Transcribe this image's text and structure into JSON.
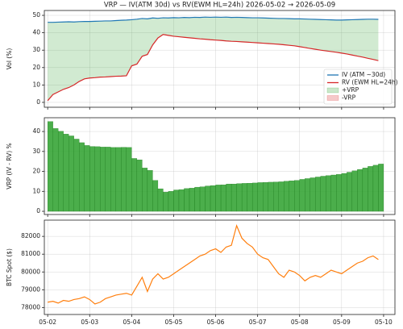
{
  "chart_data": [
    {
      "type": "line",
      "title": "VRP — IV(ATM 30d) vs RV(EWM HL=24h)  2026-05-02 → 2026-05-09",
      "ylabel": "Vol (%)",
      "x": [
        2.0,
        2.125,
        2.25,
        2.375,
        2.5,
        2.625,
        2.75,
        2.875,
        3.0,
        3.125,
        3.25,
        3.375,
        3.5,
        3.625,
        3.75,
        3.875,
        4.0,
        4.125,
        4.25,
        4.375,
        4.5,
        4.625,
        4.75,
        4.875,
        5.0,
        5.125,
        5.25,
        5.375,
        5.5,
        5.625,
        5.75,
        5.875,
        6.0,
        6.125,
        6.25,
        6.375,
        6.5,
        6.625,
        6.75,
        6.875,
        7.0,
        7.125,
        7.25,
        7.375,
        7.5,
        7.625,
        7.75,
        7.875,
        8.0,
        8.125,
        8.25,
        8.375,
        8.5,
        8.625,
        8.75,
        8.875,
        9.0,
        9.125,
        9.25,
        9.375,
        9.5,
        9.625,
        9.75,
        9.875
      ],
      "series": [
        {
          "name": "IV (ATM ~30d)",
          "color": "#1f77b4",
          "values": [
            46.0,
            46.0,
            46.1,
            46.2,
            46.3,
            46.2,
            46.4,
            46.5,
            46.5,
            46.6,
            46.7,
            46.8,
            46.8,
            47.0,
            47.2,
            47.3,
            47.5,
            47.8,
            48.2,
            48.0,
            48.5,
            48.3,
            48.6,
            48.5,
            48.7,
            48.6,
            48.8,
            48.7,
            48.9,
            48.8,
            49.0,
            48.9,
            49.0,
            48.9,
            49.0,
            48.8,
            48.9,
            48.8,
            48.7,
            48.6,
            48.6,
            48.5,
            48.4,
            48.3,
            48.2,
            48.2,
            48.1,
            48.0,
            48.0,
            47.9,
            47.8,
            47.7,
            47.6,
            47.5,
            47.4,
            47.3,
            47.3,
            47.4,
            47.5,
            47.6,
            47.7,
            47.8,
            47.8,
            47.7
          ]
        },
        {
          "name": "RV (EWM HL=24h)",
          "color": "#d62728",
          "values": [
            1.0,
            4.5,
            6.0,
            7.5,
            8.5,
            10.0,
            12.0,
            13.5,
            14.0,
            14.2,
            14.5,
            14.6,
            14.8,
            15.0,
            15.1,
            15.3,
            21.0,
            22.0,
            26.5,
            27.5,
            33.0,
            37.0,
            39.0,
            38.5,
            38.0,
            37.7,
            37.4,
            37.1,
            36.8,
            36.5,
            36.3,
            36.0,
            35.8,
            35.6,
            35.3,
            35.1,
            35.0,
            34.8,
            34.6,
            34.4,
            34.2,
            34.0,
            33.8,
            33.6,
            33.4,
            33.1,
            32.8,
            32.5,
            32.0,
            31.5,
            31.0,
            30.5,
            30.0,
            29.6,
            29.2,
            28.8,
            28.3,
            27.8,
            27.2,
            26.6,
            26.0,
            25.3,
            24.7,
            24.0
          ]
        }
      ],
      "fills": [
        {
          "name": "+VRP",
          "color": "#2ca02c"
        },
        {
          "name": "-VRP",
          "color": "#d62728"
        }
      ],
      "xlim": [
        1.92,
        10.27
      ],
      "ylim": [
        -2.8,
        52.8
      ],
      "yticks": [
        0,
        10,
        20,
        30,
        40,
        50
      ],
      "grid": true,
      "legend": "lower right"
    },
    {
      "type": "bar",
      "ylabel": "VRP (IV - RV)  %",
      "color": "#2ca02c",
      "x": [
        2.0,
        2.125,
        2.25,
        2.375,
        2.5,
        2.625,
        2.75,
        2.875,
        3.0,
        3.125,
        3.25,
        3.375,
        3.5,
        3.625,
        3.75,
        3.875,
        4.0,
        4.125,
        4.25,
        4.375,
        4.5,
        4.625,
        4.75,
        4.875,
        5.0,
        5.125,
        5.25,
        5.375,
        5.5,
        5.625,
        5.75,
        5.875,
        6.0,
        6.125,
        6.25,
        6.375,
        6.5,
        6.625,
        6.75,
        6.875,
        7.0,
        7.125,
        7.25,
        7.375,
        7.5,
        7.625,
        7.75,
        7.875,
        8.0,
        8.125,
        8.25,
        8.375,
        8.5,
        8.625,
        8.75,
        8.875,
        9.0,
        9.125,
        9.25,
        9.375,
        9.5,
        9.625,
        9.75,
        9.875
      ],
      "values": [
        45.0,
        41.5,
        40.1,
        38.7,
        37.8,
        36.2,
        34.4,
        33.0,
        32.5,
        32.4,
        32.2,
        32.2,
        32.0,
        32.0,
        32.1,
        32.0,
        26.5,
        25.8,
        21.7,
        20.5,
        15.5,
        11.3,
        9.6,
        10.0,
        10.7,
        10.9,
        11.4,
        11.6,
        12.1,
        12.3,
        12.7,
        12.9,
        13.2,
        13.3,
        13.7,
        13.7,
        13.9,
        14.0,
        14.1,
        14.2,
        14.4,
        14.5,
        14.6,
        14.7,
        14.8,
        15.1,
        15.3,
        15.5,
        16.0,
        16.4,
        16.8,
        17.2,
        17.6,
        17.9,
        18.2,
        18.5,
        19.0,
        19.6,
        20.3,
        21.0,
        21.7,
        22.5,
        23.1,
        23.7
      ],
      "xlim": [
        1.92,
        10.27
      ],
      "ylim": [
        -1.6,
        46.9
      ],
      "yticks": [
        0,
        10,
        20,
        30,
        40
      ],
      "grid": true
    },
    {
      "type": "line",
      "ylabel": "BTC Spot ($)",
      "color": "#ff7f0e",
      "x": [
        2.0,
        2.125,
        2.25,
        2.375,
        2.5,
        2.625,
        2.75,
        2.875,
        3.0,
        3.125,
        3.25,
        3.375,
        3.5,
        3.625,
        3.75,
        3.875,
        4.0,
        4.125,
        4.25,
        4.375,
        4.5,
        4.625,
        4.75,
        4.875,
        5.0,
        5.125,
        5.25,
        5.375,
        5.5,
        5.625,
        5.75,
        5.875,
        6.0,
        6.125,
        6.25,
        6.375,
        6.5,
        6.625,
        6.75,
        6.875,
        7.0,
        7.125,
        7.25,
        7.375,
        7.5,
        7.625,
        7.75,
        7.875,
        8.0,
        8.125,
        8.25,
        8.375,
        8.5,
        8.625,
        8.75,
        8.875,
        9.0,
        9.125,
        9.25,
        9.375,
        9.5,
        9.625,
        9.75,
        9.875
      ],
      "values": [
        78300,
        78350,
        78250,
        78400,
        78350,
        78450,
        78500,
        78600,
        78450,
        78200,
        78300,
        78500,
        78600,
        78700,
        78750,
        78800,
        78700,
        79200,
        79700,
        78900,
        79600,
        79900,
        79600,
        79700,
        79900,
        80100,
        80300,
        80500,
        80700,
        80900,
        81000,
        81200,
        81300,
        81100,
        81400,
        81500,
        82600,
        81900,
        81600,
        81400,
        81000,
        80800,
        80700,
        80300,
        79900,
        79700,
        80100,
        80000,
        79800,
        79500,
        79700,
        79800,
        79700,
        79900,
        80100,
        80000,
        79900,
        80100,
        80300,
        80500,
        80600,
        80800,
        80900,
        80700
      ],
      "xlim": [
        1.92,
        10.27
      ],
      "ylim": [
        77609,
        82913
      ],
      "yticks": [
        78000,
        79000,
        80000,
        81000,
        82000
      ],
      "grid": true,
      "xticks": [
        {
          "value": 2,
          "label": "05-02"
        },
        {
          "value": 3,
          "label": "05-03"
        },
        {
          "value": 4,
          "label": "05-04"
        },
        {
          "value": 5,
          "label": "05-05"
        },
        {
          "value": 6,
          "label": "05-06"
        },
        {
          "value": 7,
          "label": "05-07"
        },
        {
          "value": 8,
          "label": "05-08"
        },
        {
          "value": 9,
          "label": "05-09"
        },
        {
          "value": 10,
          "label": "05-10"
        }
      ]
    }
  ]
}
